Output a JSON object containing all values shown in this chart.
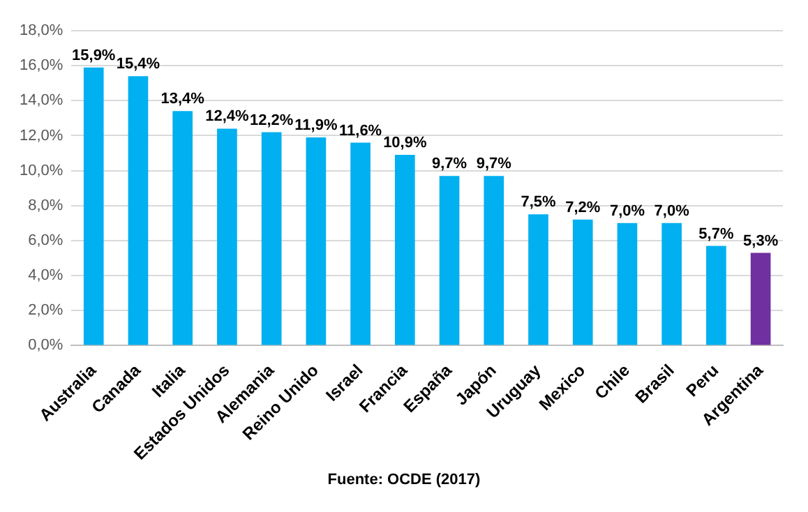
{
  "chart_data": {
    "type": "bar",
    "categories": [
      "Australia",
      "Canada",
      "Italia",
      "Estados Unidos",
      "Alemania",
      "Reino Unido",
      "Israel",
      "Francia",
      "España",
      "Japón",
      "Uruguay",
      "Mexico",
      "Chile",
      "Brasil",
      "Peru",
      "Argentina"
    ],
    "values": [
      15.9,
      15.4,
      13.4,
      12.4,
      12.2,
      11.9,
      11.6,
      10.9,
      9.7,
      9.7,
      7.5,
      7.2,
      7.0,
      7.0,
      5.7,
      5.3
    ],
    "value_labels": [
      "15,9%",
      "15,4%",
      "13,4%",
      "12,4%",
      "12,2%",
      "11,9%",
      "11,6%",
      "10,9%",
      "9,7%",
      "9,7%",
      "7,5%",
      "7,2%",
      "7,0%",
      "7,0%",
      "5,7%",
      "5,3%"
    ],
    "colors": [
      "#00b0f0",
      "#00b0f0",
      "#00b0f0",
      "#00b0f0",
      "#00b0f0",
      "#00b0f0",
      "#00b0f0",
      "#00b0f0",
      "#00b0f0",
      "#00b0f0",
      "#00b0f0",
      "#00b0f0",
      "#00b0f0",
      "#00b0f0",
      "#00b0f0",
      "#7030a0"
    ],
    "ylim": [
      0,
      18
    ],
    "yticks": [
      {
        "value": 0,
        "label": "0,0%"
      },
      {
        "value": 2,
        "label": "2,0%"
      },
      {
        "value": 4,
        "label": "4,0%"
      },
      {
        "value": 6,
        "label": "6,0%"
      },
      {
        "value": 8,
        "label": "8,0%"
      },
      {
        "value": 10,
        "label": "10,0%"
      },
      {
        "value": 12,
        "label": "12,0%"
      },
      {
        "value": 14,
        "label": "14,0%"
      },
      {
        "value": 16,
        "label": "16,0%"
      },
      {
        "value": 18,
        "label": "18,0%"
      }
    ],
    "grid": "y",
    "legend": false,
    "annotations": [
      "Fuente: OCDE (2017)"
    ]
  }
}
